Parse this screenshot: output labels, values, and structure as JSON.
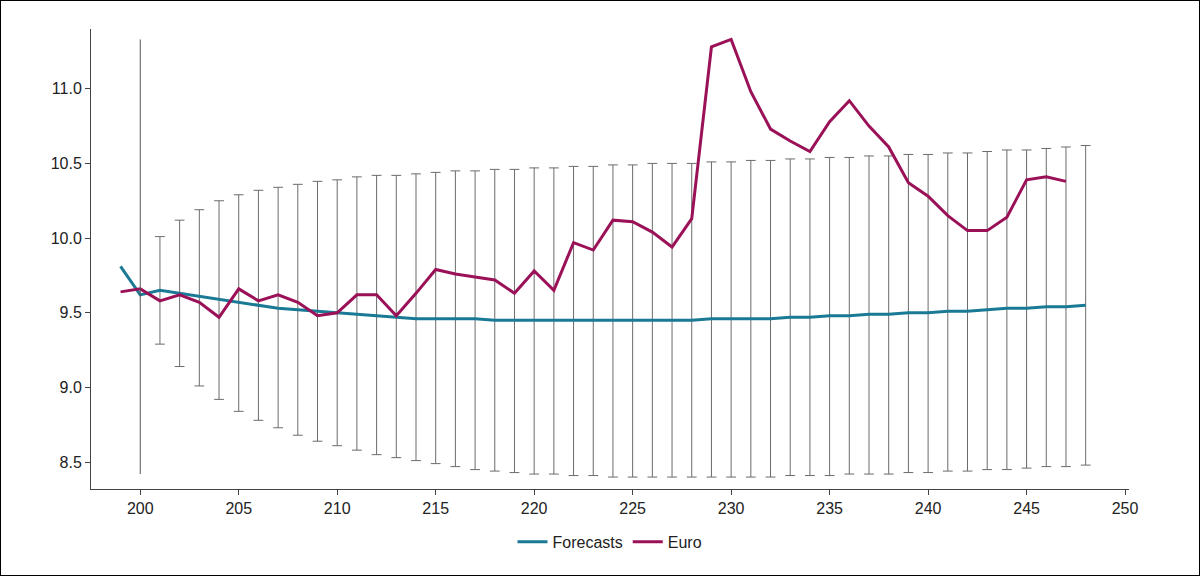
{
  "chart_data": {
    "type": "line",
    "x": [
      199,
      200,
      201,
      202,
      203,
      204,
      205,
      206,
      207,
      208,
      209,
      210,
      211,
      212,
      213,
      214,
      215,
      216,
      217,
      218,
      219,
      220,
      221,
      222,
      223,
      224,
      225,
      226,
      227,
      228,
      229,
      230,
      231,
      232,
      233,
      234,
      235,
      236,
      237,
      238,
      239,
      240,
      241,
      242,
      243,
      244,
      245,
      246,
      247,
      248
    ],
    "series": [
      {
        "name": "Forecasts",
        "color": "#1a7a96",
        "values": [
          9.81,
          9.62,
          9.65,
          9.63,
          9.61,
          9.59,
          9.57,
          9.55,
          9.53,
          9.52,
          9.51,
          9.5,
          9.49,
          9.48,
          9.47,
          9.46,
          9.46,
          9.46,
          9.46,
          9.45,
          9.45,
          9.45,
          9.45,
          9.45,
          9.45,
          9.45,
          9.45,
          9.45,
          9.45,
          9.45,
          9.46,
          9.46,
          9.46,
          9.46,
          9.47,
          9.47,
          9.48,
          9.48,
          9.49,
          9.49,
          9.5,
          9.5,
          9.51,
          9.51,
          9.52,
          9.53,
          9.53,
          9.54,
          9.54,
          9.55
        ],
        "upper": [
          null,
          null,
          10.01,
          10.12,
          10.19,
          10.25,
          10.29,
          10.32,
          10.34,
          10.36,
          10.38,
          10.39,
          10.41,
          10.42,
          10.42,
          10.43,
          10.44,
          10.45,
          10.45,
          10.46,
          10.46,
          10.47,
          10.47,
          10.48,
          10.48,
          10.49,
          10.49,
          10.5,
          10.5,
          10.5,
          10.51,
          10.51,
          10.52,
          10.52,
          10.53,
          10.53,
          10.54,
          10.54,
          10.55,
          10.55,
          10.56,
          10.56,
          10.57,
          10.57,
          10.58,
          10.59,
          10.59,
          10.6,
          10.61,
          10.62
        ],
        "lower": [
          null,
          null,
          9.29,
          9.14,
          9.01,
          8.92,
          8.84,
          8.78,
          8.73,
          8.68,
          8.64,
          8.61,
          8.58,
          8.55,
          8.53,
          8.51,
          8.49,
          8.47,
          8.45,
          8.44,
          8.43,
          8.42,
          8.42,
          8.41,
          8.41,
          8.4,
          8.4,
          8.4,
          8.4,
          8.4,
          8.4,
          8.4,
          8.4,
          8.4,
          8.41,
          8.41,
          8.41,
          8.42,
          8.42,
          8.42,
          8.43,
          8.43,
          8.44,
          8.44,
          8.45,
          8.45,
          8.46,
          8.47,
          8.47,
          8.48
        ]
      },
      {
        "name": "Euro",
        "color": "#9b1158",
        "values": [
          9.64,
          9.66,
          9.58,
          9.62,
          9.57,
          9.47,
          9.66,
          9.58,
          9.62,
          9.57,
          9.48,
          9.5,
          9.62,
          9.62,
          9.48,
          9.63,
          9.79,
          9.76,
          9.74,
          9.72,
          9.63,
          9.78,
          9.65,
          9.97,
          9.92,
          10.12,
          10.11,
          10.04,
          9.94,
          10.13,
          11.28,
          11.33,
          10.98,
          10.73,
          10.65,
          10.58,
          10.78,
          10.92,
          10.75,
          10.61,
          10.37,
          10.28,
          10.15,
          10.05,
          10.05,
          10.14,
          10.39,
          10.41,
          10.38,
          null
        ]
      }
    ],
    "forecast_start": {
      "x": 200,
      "ymin": 8.42,
      "ymax": 11.33
    },
    "xlim": [
      197.5,
      250.2
    ],
    "xticks": [
      200,
      205,
      210,
      215,
      220,
      225,
      230,
      235,
      240,
      245,
      250
    ],
    "ylim": [
      8.32,
      11.4
    ],
    "yticks": [
      8.5,
      {
        "value": 9,
        "label": "9.0"
      },
      9.5,
      {
        "value": 10,
        "label": "10.0"
      },
      10.5,
      {
        "value": 11,
        "label": "11.0"
      }
    ],
    "grid": false,
    "legend": "bottom"
  }
}
